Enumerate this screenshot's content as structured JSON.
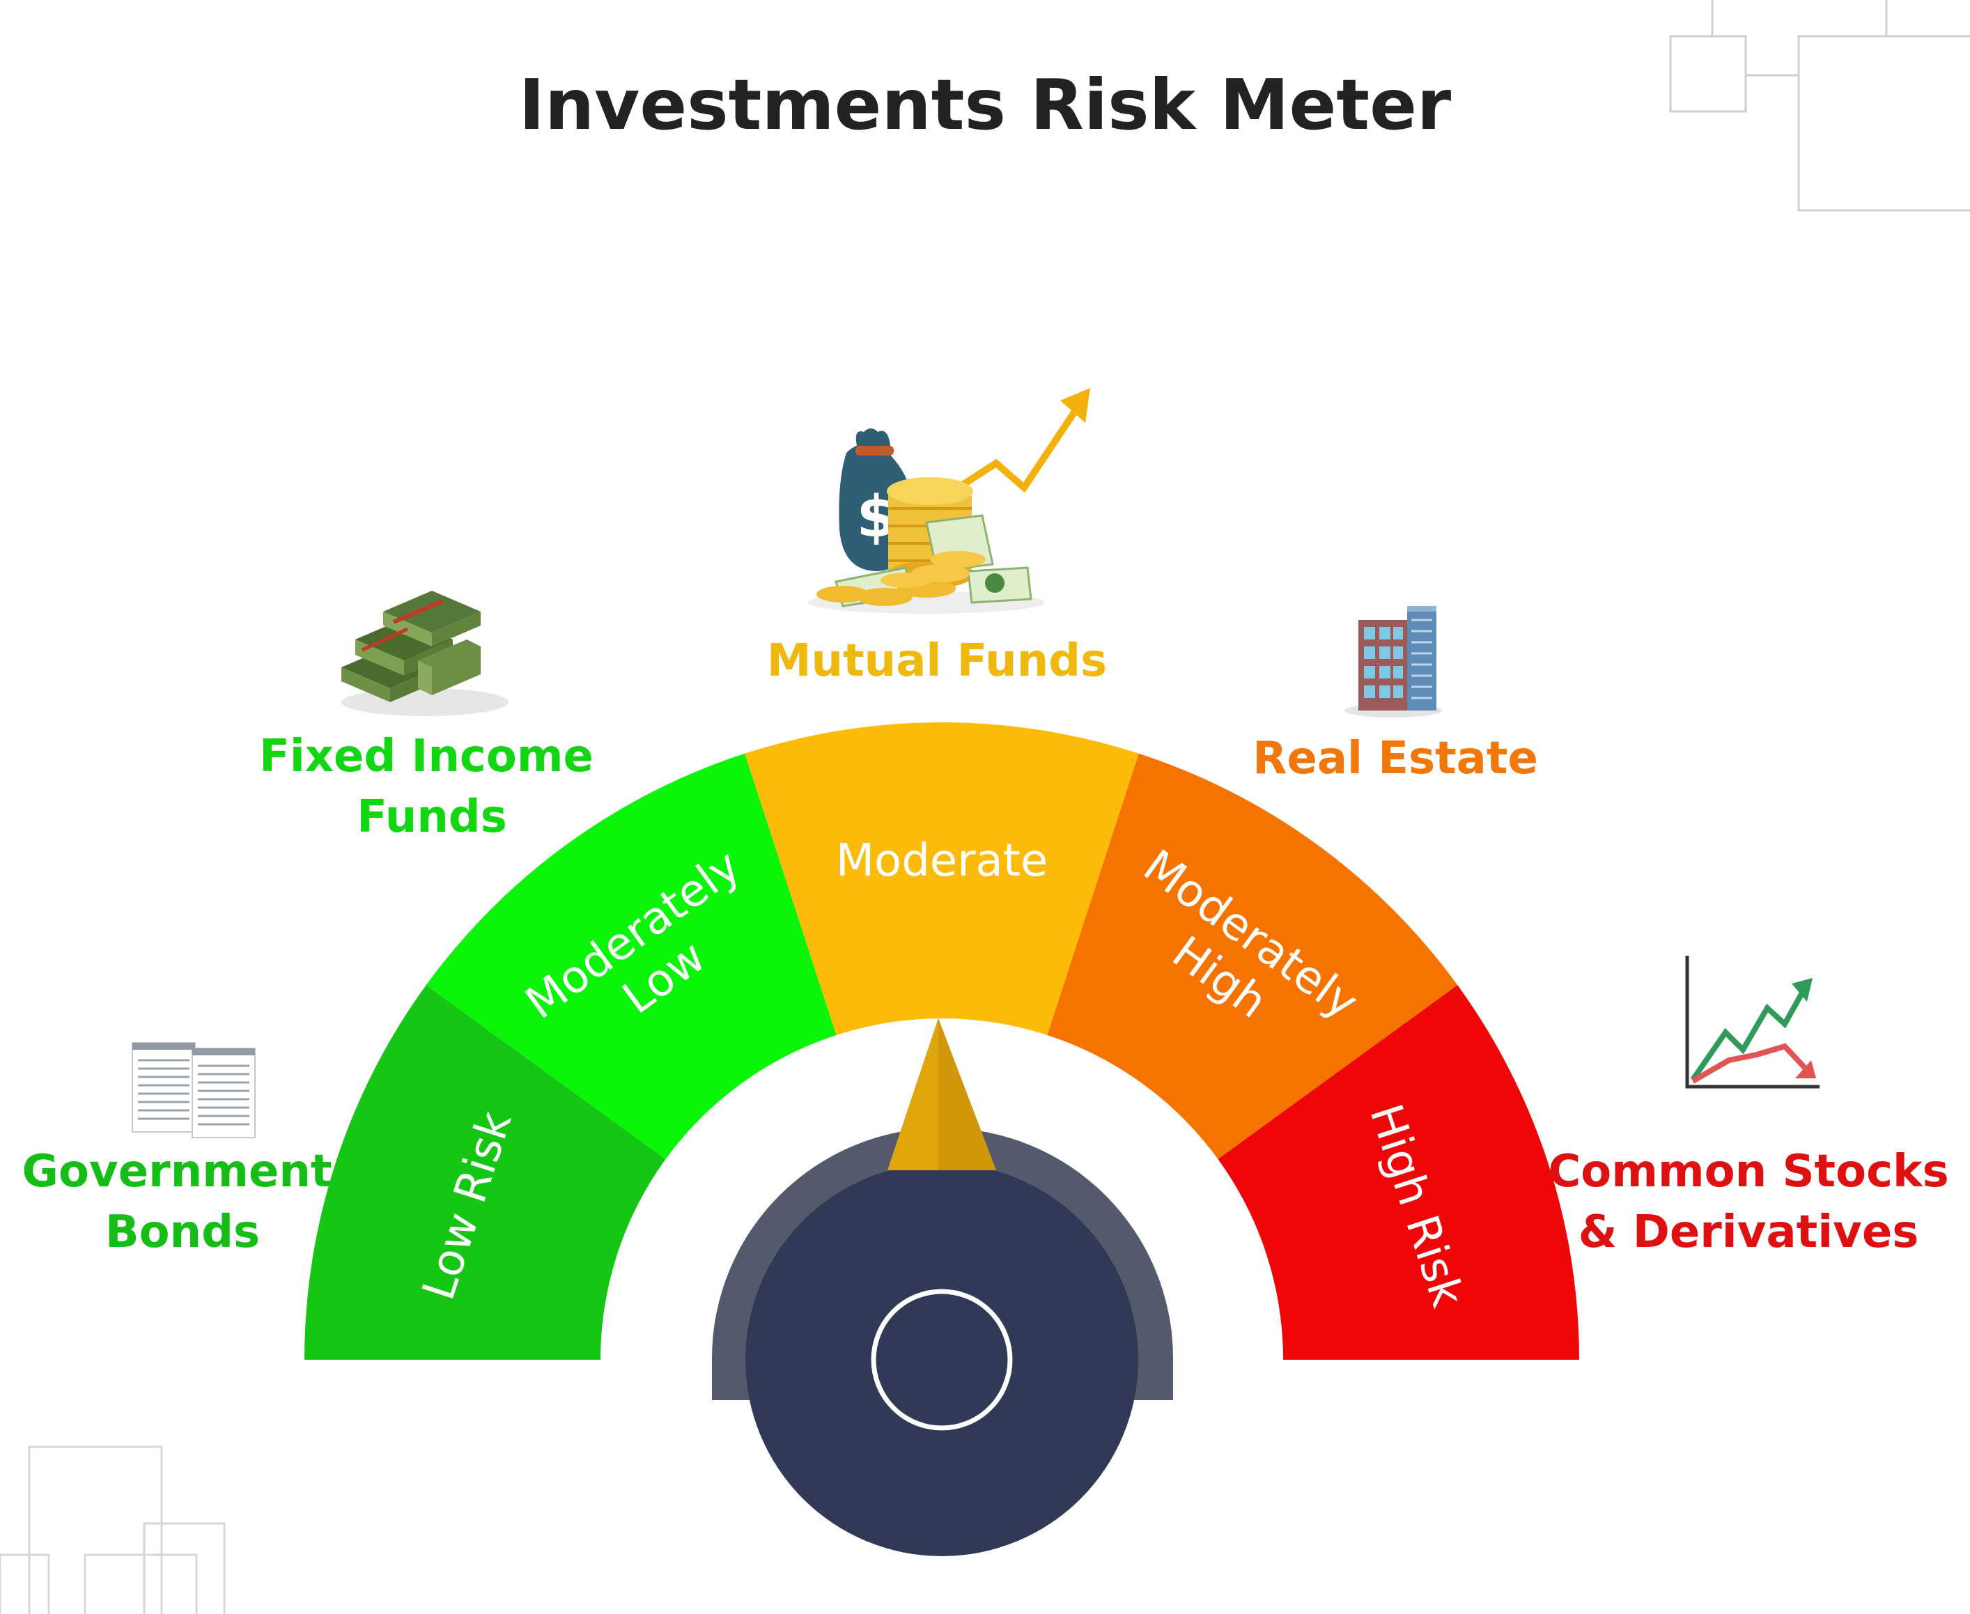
{
  "title": "Investments Risk Meter",
  "colors": {
    "low": "#15c615",
    "moderately_low": "#0af50a",
    "moderate": "#fbbb08",
    "moderately_high": "#f77300",
    "high": "#ef0707",
    "knob": "#303955",
    "knob_rim": "#535a6c",
    "needle": "#e0a50b",
    "title": "#222222"
  },
  "meter": {
    "bands": [
      {
        "key": "low",
        "label_lines": [
          "Low Risk"
        ]
      },
      {
        "key": "moderately_low",
        "label_lines": [
          "Moderately",
          "Low"
        ]
      },
      {
        "key": "moderate",
        "label_lines": [
          "Moderate"
        ]
      },
      {
        "key": "moderately_high",
        "label_lines": [
          "Moderately",
          "High"
        ]
      },
      {
        "key": "high",
        "label_lines": [
          "High Risk"
        ]
      }
    ],
    "needle_points_to": "Moderate"
  },
  "investments": [
    {
      "key": "government_bonds",
      "label_lines": [
        "Government",
        "Bonds"
      ],
      "icon": "document-icon",
      "color": "#17bd17"
    },
    {
      "key": "fixed_income",
      "label_lines": [
        "Fixed Income",
        "Funds"
      ],
      "icon": "cash-stack-icon",
      "color": "#13d613"
    },
    {
      "key": "mutual_funds",
      "label_lines": [
        "Mutual Funds"
      ],
      "icon": "money-bag-icon",
      "color": "#eeb90c"
    },
    {
      "key": "real_estate",
      "label_lines": [
        "Real Estate"
      ],
      "icon": "building-icon",
      "color": "#f0780a"
    },
    {
      "key": "stocks",
      "label_lines": [
        "Common Stocks",
        "& Derivatives"
      ],
      "icon": "stock-chart-icon",
      "color": "#dd1111"
    }
  ]
}
